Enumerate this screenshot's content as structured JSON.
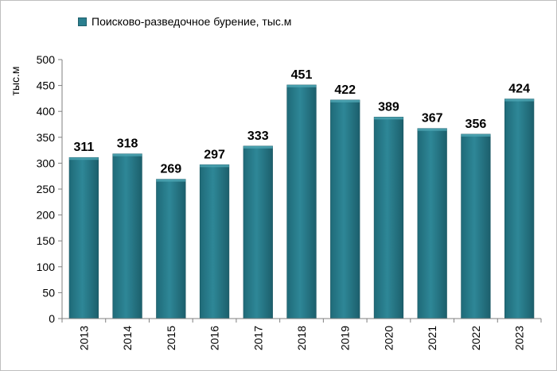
{
  "chart_data": {
    "type": "bar",
    "categories": [
      "2013",
      "2014",
      "2015",
      "2016",
      "2017",
      "2018",
      "2019",
      "2020",
      "2021",
      "2022",
      "2023"
    ],
    "series": [
      {
        "name": "Поисково-разведочное бурение, тыс.м",
        "values": [
          311,
          318,
          269,
          297,
          333,
          451,
          422,
          389,
          367,
          356,
          424
        ],
        "color": "#2a7f8f"
      }
    ],
    "data_labels": [
      "311",
      "318",
      "269",
      "297",
      "333",
      "451",
      "422",
      "389",
      "367",
      "356",
      "424"
    ],
    "ylabel": "тыс.м",
    "ylim": [
      0,
      500
    ],
    "yticks": [
      "0",
      "50",
      "100",
      "150",
      "200",
      "250",
      "300",
      "350",
      "400",
      "450",
      "500"
    ],
    "grid": false,
    "legend": "top-left"
  }
}
